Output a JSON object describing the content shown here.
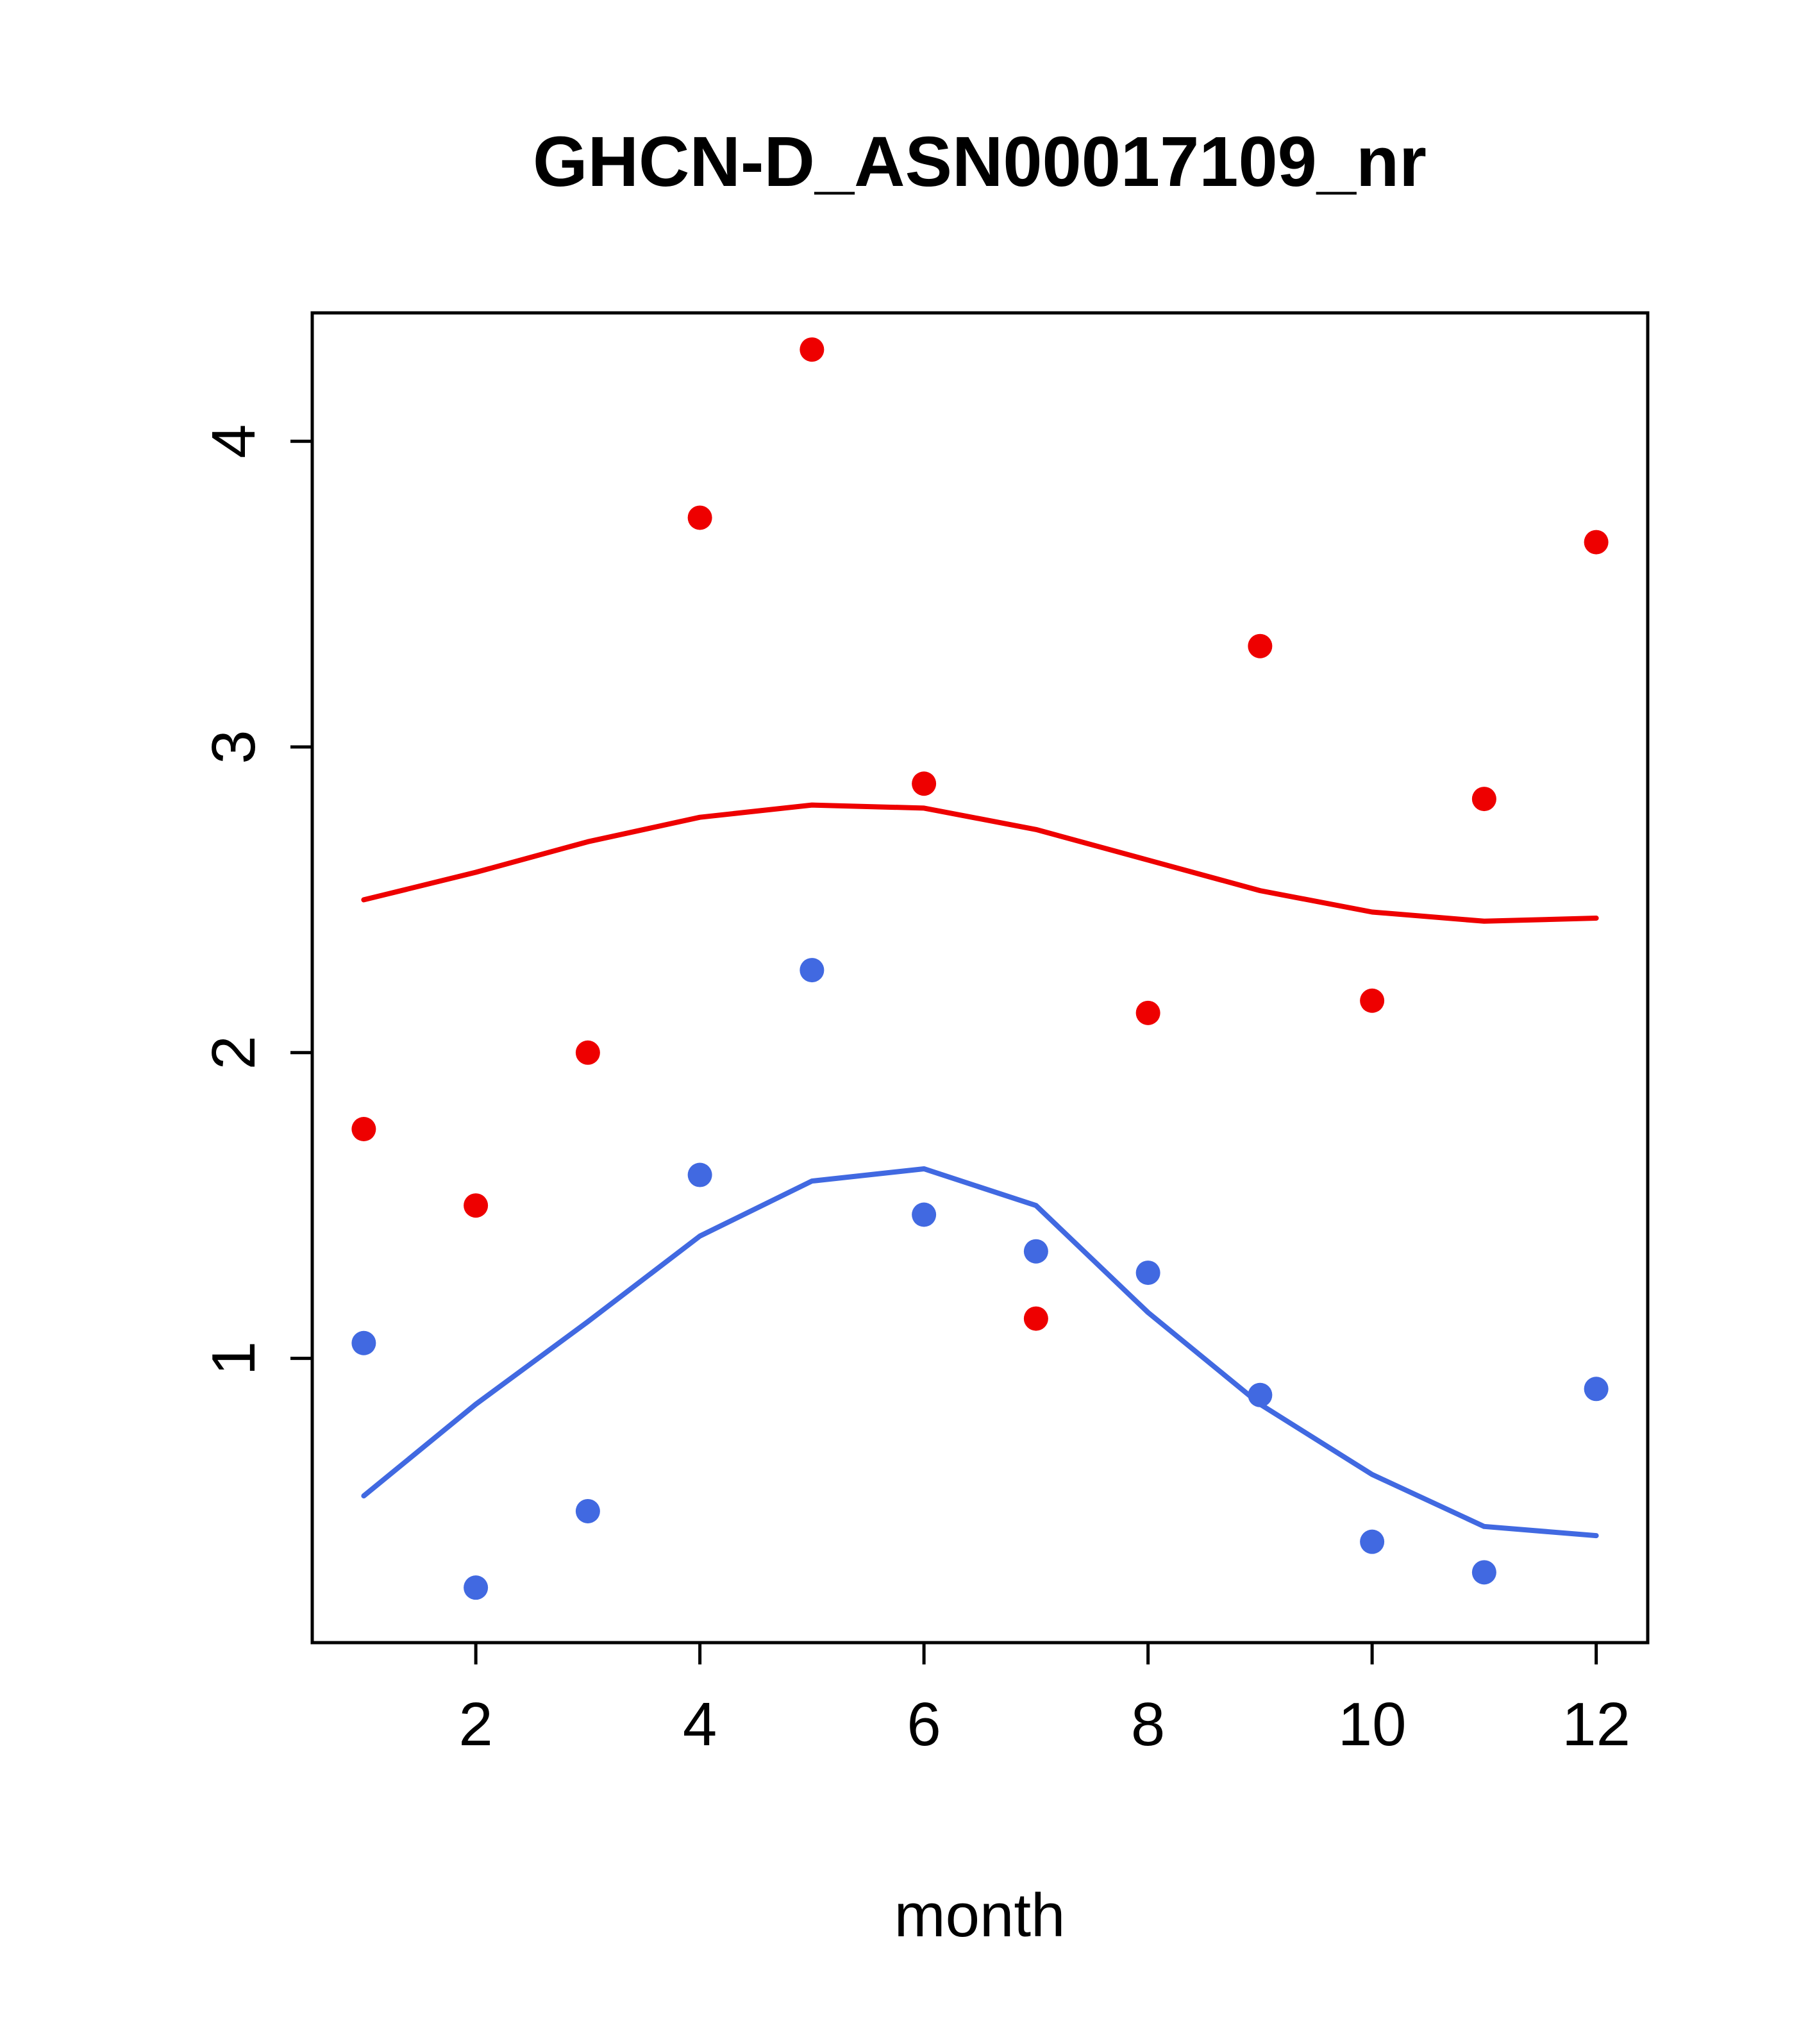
{
  "chart_data": {
    "type": "scatter",
    "title": "GHCN-D_ASN00017109_nr",
    "xlabel": "month",
    "ylabel": "",
    "xlim": [
      0.54,
      12.46
    ],
    "ylim": [
      0.07,
      4.42
    ],
    "x_ticks": [
      2,
      4,
      6,
      8,
      10,
      12
    ],
    "y_ticks": [
      1,
      2,
      3,
      4
    ],
    "grid": false,
    "legend": "none",
    "x": [
      1,
      2,
      3,
      4,
      5,
      6,
      7,
      8,
      9,
      10,
      11,
      12
    ],
    "series": [
      {
        "name": "red-points",
        "kind": "scatter",
        "color": "#EE0000",
        "values": [
          1.75,
          1.5,
          2.0,
          3.75,
          4.3,
          2.88,
          1.13,
          2.13,
          3.33,
          2.17,
          2.83,
          3.67
        ]
      },
      {
        "name": "blue-points",
        "kind": "scatter",
        "color": "#4169E1",
        "values": [
          1.05,
          0.25,
          0.5,
          1.6,
          2.27,
          1.47,
          1.35,
          1.28,
          0.88,
          0.4,
          0.3,
          0.9
        ]
      },
      {
        "name": "red-smooth-line",
        "kind": "line",
        "color": "#EE0000",
        "values": [
          2.5,
          2.59,
          2.69,
          2.77,
          2.81,
          2.8,
          2.73,
          2.63,
          2.53,
          2.46,
          2.43,
          2.44
        ]
      },
      {
        "name": "blue-smooth-line",
        "kind": "line",
        "color": "#4169E1",
        "values": [
          0.55,
          0.85,
          1.12,
          1.4,
          1.58,
          1.62,
          1.5,
          1.15,
          0.85,
          0.62,
          0.45,
          0.42
        ]
      }
    ],
    "colors": {
      "red": "#EE0000",
      "blue": "#4169E1",
      "axis": "#000000",
      "background": "#FFFFFF"
    }
  }
}
